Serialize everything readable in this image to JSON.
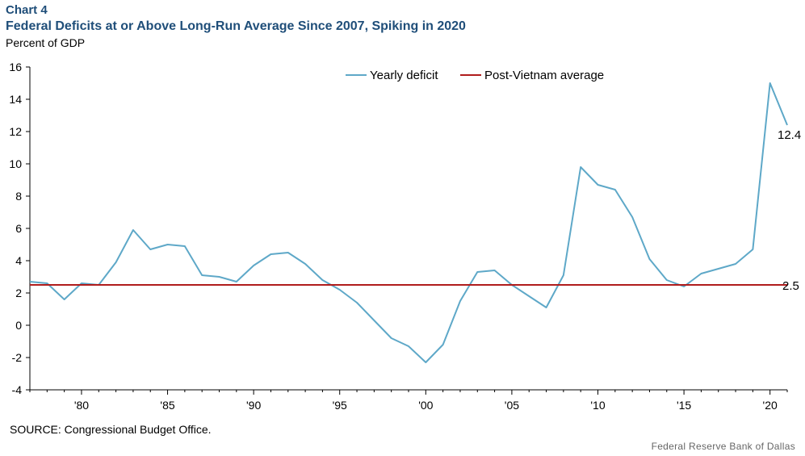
{
  "header": {
    "chart_label": "Chart 4",
    "title": "Federal Deficits at or Above Long-Run Average Since 2007, Spiking in 2020",
    "unit": "Percent of GDP"
  },
  "footer": {
    "source": "SOURCE: Congressional Budget Office.",
    "credit": "Federal Reserve  Bank of Dallas"
  },
  "colors": {
    "deficit_line": "#5ea8c8",
    "average_line": "#b01c1c",
    "title": "#1f4e79"
  },
  "chart_data": {
    "type": "line",
    "title": "Federal Deficits at or Above Long-Run Average Since 2007, Spiking in 2020",
    "ylabel": "Percent of GDP",
    "xlabel": "",
    "ylim": [
      -4,
      16
    ],
    "xlim": [
      1977,
      2021
    ],
    "y_ticks": [
      -4,
      -2,
      0,
      2,
      4,
      6,
      8,
      10,
      12,
      14,
      16
    ],
    "x_ticks": [
      {
        "year": 1980,
        "label": "'80"
      },
      {
        "year": 1985,
        "label": "'85"
      },
      {
        "year": 1990,
        "label": "'90"
      },
      {
        "year": 1995,
        "label": "'95"
      },
      {
        "year": 2000,
        "label": "'00"
      },
      {
        "year": 2005,
        "label": "'05"
      },
      {
        "year": 2010,
        "label": "'10"
      },
      {
        "year": 2015,
        "label": "'15"
      },
      {
        "year": 2020,
        "label": "'20"
      }
    ],
    "legend_position": "top-center",
    "series": [
      {
        "name": "Yearly deficit",
        "x": [
          1977,
          1978,
          1979,
          1980,
          1981,
          1982,
          1983,
          1984,
          1985,
          1986,
          1987,
          1988,
          1989,
          1990,
          1991,
          1992,
          1993,
          1994,
          1995,
          1996,
          1997,
          1998,
          1999,
          2000,
          2001,
          2002,
          2003,
          2004,
          2005,
          2006,
          2007,
          2008,
          2009,
          2010,
          2011,
          2012,
          2013,
          2014,
          2015,
          2016,
          2017,
          2018,
          2019,
          2020,
          2021
        ],
        "values": [
          2.7,
          2.6,
          1.6,
          2.6,
          2.5,
          3.9,
          5.9,
          4.7,
          5.0,
          4.9,
          3.1,
          3.0,
          2.7,
          3.7,
          4.4,
          4.5,
          3.8,
          2.8,
          2.2,
          1.4,
          0.3,
          -0.8,
          -1.3,
          -2.3,
          -1.2,
          1.5,
          3.3,
          3.4,
          2.5,
          1.8,
          1.1,
          3.1,
          9.8,
          8.7,
          8.4,
          6.7,
          4.1,
          2.8,
          2.4,
          3.2,
          3.5,
          3.8,
          4.7,
          15.0,
          12.4
        ]
      },
      {
        "name": "Post-Vietnam average",
        "x": [
          1977,
          2021
        ],
        "values": [
          2.5,
          2.5
        ]
      }
    ],
    "annotations": [
      {
        "text": "12.4",
        "x": 2021,
        "y": 12.4
      },
      {
        "text": "2.5",
        "x": 2021,
        "y": 2.5
      }
    ]
  }
}
